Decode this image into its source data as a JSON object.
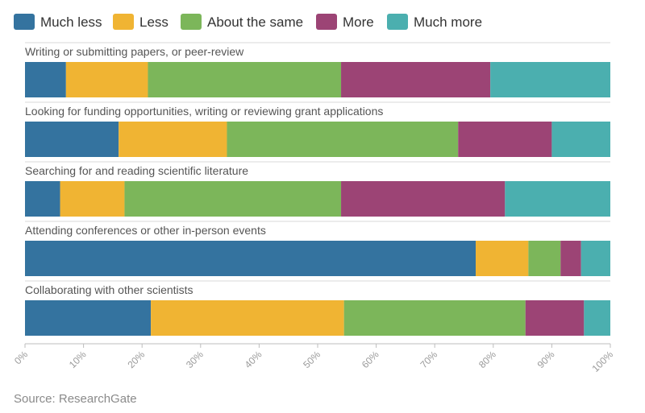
{
  "source": "Source: ResearchGate",
  "chart_data": {
    "type": "bar",
    "orientation": "horizontal",
    "stacked": true,
    "normalized": true,
    "title": "",
    "xlabel": "",
    "ylabel": "",
    "xlim": [
      0,
      100
    ],
    "x_ticks": [
      "0%",
      "10%",
      "20%",
      "30%",
      "40%",
      "50%",
      "60%",
      "70%",
      "80%",
      "90%",
      "100%"
    ],
    "legend_position": "top-left",
    "grid": false,
    "categories": [
      "Writing or submitting papers, or peer-review",
      "Looking for funding opportunities, writing or reviewing grant applications",
      "Searching for and reading scientific literature",
      "Attending conferences or other in-person events",
      "Collaborating with other scientists"
    ],
    "series": [
      {
        "name": "Much less",
        "color": "#34739f",
        "values": [
          7,
          16,
          6,
          77,
          21.5
        ]
      },
      {
        "name": "Less",
        "color": "#f0b433",
        "values": [
          14,
          18.5,
          11,
          9,
          33
        ]
      },
      {
        "name": "About the same",
        "color": "#7cb65a",
        "values": [
          33,
          39.5,
          37,
          5.5,
          31
        ]
      },
      {
        "name": "More",
        "color": "#9c4475",
        "values": [
          25.5,
          16,
          28,
          3.5,
          10
        ]
      },
      {
        "name": "Much more",
        "color": "#4bafaf",
        "values": [
          20.5,
          10,
          18,
          5,
          4.5
        ]
      }
    ]
  }
}
